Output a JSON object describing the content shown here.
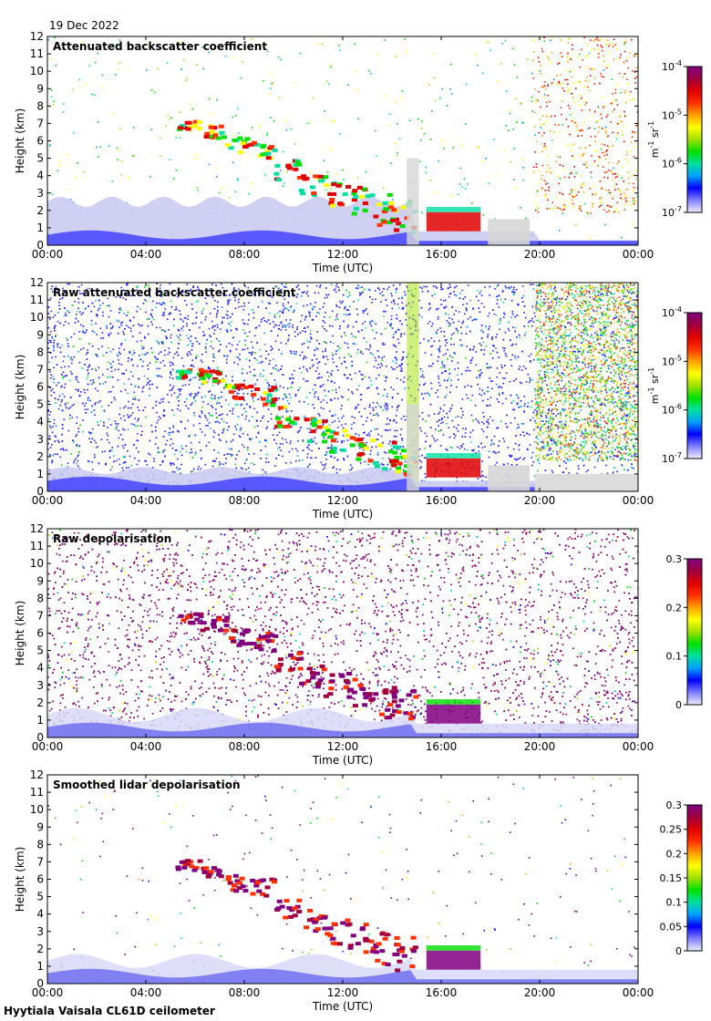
{
  "date_label": "19 Dec 2022",
  "footer": "Hyytiala Vaisala CL61D ceilometer",
  "colors": {
    "background": "#ffffff",
    "fill_default": "#e8e8f8",
    "clutter_gray": "#d6d6d6",
    "colormap": [
      "#eeeeff",
      "#8080ff",
      "#0000ff",
      "#00a0ff",
      "#00e0a0",
      "#00e000",
      "#a0e000",
      "#ffff00",
      "#ffa000",
      "#ff3000",
      "#e00000",
      "#a00040",
      "#800080"
    ]
  },
  "chart_data": [
    {
      "id": "p1",
      "type": "heatmap",
      "title": "Attenuated backscatter coefficient",
      "xlabel": "Time (UTC)",
      "ylabel": "Height (km)",
      "xlim_hours": [
        0,
        24
      ],
      "ylim_km": [
        0,
        12
      ],
      "x_ticks": [
        "00:00",
        "04:00",
        "08:00",
        "12:00",
        "16:00",
        "20:00",
        "00:00"
      ],
      "y_ticks": [
        "0",
        "1",
        "2",
        "3",
        "4",
        "5",
        "6",
        "7",
        "8",
        "9",
        "10",
        "11",
        "12"
      ],
      "colorbar": {
        "scale": "log",
        "ticks": [
          "10-7",
          "10-6",
          "10-5",
          "10-4"
        ],
        "tick_base": "10",
        "tick_exps": [
          "-7",
          "-6",
          "-5",
          "-4"
        ],
        "label": "m-1 sr-1",
        "unit_parts": [
          "m",
          "-1",
          " sr",
          "-1"
        ]
      },
      "noise_density": 0.05,
      "sky_mode": "colored"
    },
    {
      "id": "p2",
      "type": "heatmap",
      "title": "Raw attenuated backscatter coefficient",
      "xlabel": "Time (UTC)",
      "ylabel": "Height (km)",
      "xlim_hours": [
        0,
        24
      ],
      "ylim_km": [
        0,
        12
      ],
      "x_ticks": [
        "00:00",
        "04:00",
        "08:00",
        "12:00",
        "16:00",
        "20:00",
        "00:00"
      ],
      "y_ticks": [
        "0",
        "1",
        "2",
        "3",
        "4",
        "5",
        "6",
        "7",
        "8",
        "9",
        "10",
        "11",
        "12"
      ],
      "colorbar": {
        "scale": "log",
        "ticks": [
          "10-7",
          "10-6",
          "10-5",
          "10-4"
        ],
        "tick_base": "10",
        "tick_exps": [
          "-7",
          "-6",
          "-5",
          "-4"
        ],
        "label": "m-1 sr-1",
        "unit_parts": [
          "m",
          "-1",
          " sr",
          "-1"
        ]
      },
      "noise_density": 0.6,
      "sky_mode": "blue"
    },
    {
      "id": "p3",
      "type": "heatmap",
      "title": "Raw depolarisation",
      "xlabel": "Time (UTC)",
      "ylabel": "Height (km)",
      "xlim_hours": [
        0,
        24
      ],
      "ylim_km": [
        0,
        12
      ],
      "x_ticks": [
        "00:00",
        "04:00",
        "08:00",
        "12:00",
        "16:00",
        "20:00",
        "00:00"
      ],
      "y_ticks": [
        "0",
        "1",
        "2",
        "3",
        "4",
        "5",
        "6",
        "7",
        "8",
        "9",
        "10",
        "11",
        "12"
      ],
      "colorbar": {
        "scale": "linear",
        "ticks": [
          "0",
          "0.1",
          "0.2",
          "0.3"
        ],
        "label": ""
      },
      "noise_density": 0.75,
      "sky_mode": "purple"
    },
    {
      "id": "p4",
      "type": "heatmap",
      "title": "Smoothed lidar depolarisation",
      "xlabel": "Time (UTC)",
      "ylabel": "Height (km)",
      "xlim_hours": [
        0,
        24
      ],
      "ylim_km": [
        0,
        12
      ],
      "x_ticks": [
        "00:00",
        "04:00",
        "08:00",
        "12:00",
        "16:00",
        "20:00",
        "00:00"
      ],
      "y_ticks": [
        "0",
        "1",
        "2",
        "3",
        "4",
        "5",
        "6",
        "7",
        "8",
        "9",
        "10",
        "11",
        "12"
      ],
      "colorbar": {
        "scale": "linear",
        "ticks": [
          "0",
          "0.05",
          "0.1",
          "0.15",
          "0.2",
          "0.25",
          "0.3"
        ],
        "label": ""
      },
      "noise_density": 0.03,
      "sky_mode": "purple_sparse"
    }
  ]
}
